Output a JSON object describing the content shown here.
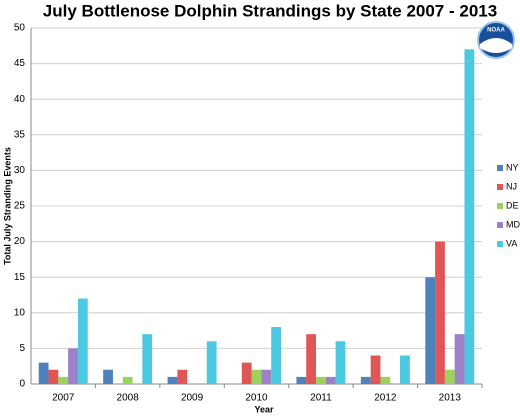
{
  "chart_data": {
    "type": "bar",
    "title": "July Bottlenose Dolphin Strandings by State 2007 - 2013",
    "logo_text": "NOAA",
    "x_label": "Year",
    "y_label": "Total July Stranding Events",
    "categories": [
      "2007",
      "2008",
      "2009",
      "2010",
      "2011",
      "2012",
      "2013"
    ],
    "series": [
      {
        "name": "NY",
        "color": "#4f81bd",
        "values": [
          3,
          2,
          1,
          0,
          1,
          1,
          15
        ]
      },
      {
        "name": "NJ",
        "color": "#e05555",
        "values": [
          2,
          0,
          2,
          3,
          7,
          4,
          20
        ]
      },
      {
        "name": "DE",
        "color": "#9bd25a",
        "values": [
          1,
          1,
          0,
          2,
          1,
          1,
          2
        ]
      },
      {
        "name": "MD",
        "color": "#9c80c8",
        "values": [
          5,
          0,
          0,
          2,
          1,
          0,
          7
        ]
      },
      {
        "name": "VA",
        "color": "#4cc8e2",
        "values": [
          12,
          7,
          6,
          8,
          6,
          4,
          47
        ]
      }
    ],
    "ylim": [
      0,
      50
    ],
    "yticks": [
      0,
      5,
      10,
      15,
      20,
      25,
      30,
      35,
      40,
      45,
      50
    ],
    "grid": true,
    "legend": "right"
  }
}
